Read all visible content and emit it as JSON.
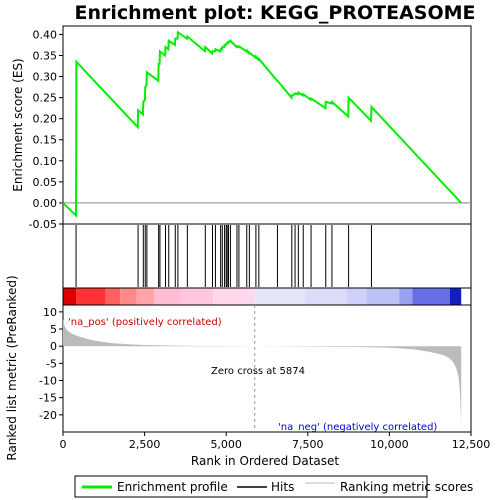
{
  "chart_data": {
    "type": "line",
    "title": "Enrichment plot: KEGG_PROTEASOME",
    "xlabel": "Rank in Ordered Dataset",
    "xlim": [
      0,
      12500
    ],
    "x_ticks": [
      "0",
      "2,500",
      "5,000",
      "7,500",
      "10,000",
      "12,500"
    ],
    "x_tick_values": [
      0,
      2500,
      5000,
      7500,
      10000,
      12500
    ],
    "panels": {
      "enrichment": {
        "ylabel": "Enrichment score (ES)",
        "ylim": [
          -0.05,
          0.42
        ],
        "y_ticks": [
          "-0.05",
          "0.00",
          "0.05",
          "0.10",
          "0.15",
          "0.20",
          "0.25",
          "0.30",
          "0.35",
          "0.40"
        ],
        "y_tick_values": [
          -0.05,
          0.0,
          0.05,
          0.1,
          0.15,
          0.2,
          0.25,
          0.3,
          0.35,
          0.4
        ],
        "color": "#00ee00",
        "series": [
          {
            "x": [
              0,
              400,
              410,
              2290,
              2300,
              2450,
              2460,
              2510,
              2520,
              2560,
              2570,
              2920,
              2930,
              2960,
              2970,
              3130,
              3140,
              3230,
              3240,
              3430,
              3440,
              3510,
              3520,
              3800,
              3810,
              4350,
              4360,
              4570,
              4580,
              4660,
              4670,
              4820,
              4830,
              4870,
              4880,
              4940,
              4950,
              4990,
              5000,
              5020,
              5030,
              5060,
              5070,
              5120,
              5130,
              5320,
              5330,
              5380,
              5390,
              5620,
              5630,
              5700,
              5710,
              5900,
              5910,
              5990,
              6000,
              6560,
              6570,
              7000,
              7010,
              7100,
              7110,
              7200,
              7210,
              7350,
              7360,
              7590,
              7600,
              8040,
              8050,
              8230,
              8240,
              8740,
              8750,
              9440,
              9450,
              12200
            ],
            "y": [
              0.0,
              -0.03,
              0.335,
              0.18,
              0.22,
              0.21,
              0.24,
              0.245,
              0.275,
              0.28,
              0.31,
              0.29,
              0.33,
              0.33,
              0.36,
              0.35,
              0.37,
              0.365,
              0.385,
              0.375,
              0.39,
              0.39,
              0.405,
              0.39,
              0.395,
              0.36,
              0.37,
              0.355,
              0.36,
              0.36,
              0.365,
              0.36,
              0.365,
              0.365,
              0.37,
              0.37,
              0.375,
              0.375,
              0.378,
              0.378,
              0.38,
              0.38,
              0.383,
              0.383,
              0.385,
              0.37,
              0.372,
              0.37,
              0.372,
              0.36,
              0.362,
              0.355,
              0.357,
              0.345,
              0.348,
              0.34,
              0.342,
              0.29,
              0.29,
              0.25,
              0.255,
              0.258,
              0.26,
              0.258,
              0.262,
              0.255,
              0.258,
              0.245,
              0.248,
              0.225,
              0.24,
              0.236,
              0.24,
              0.205,
              0.25,
              0.195,
              0.228,
              0.0
            ]
          }
        ]
      },
      "hits": {
        "positions": [
          400,
          2300,
          2460,
          2520,
          2570,
          2930,
          2970,
          3140,
          3240,
          3440,
          3520,
          3810,
          4360,
          4580,
          4670,
          4830,
          4880,
          4950,
          5000,
          5030,
          5070,
          5130,
          5330,
          5390,
          5630,
          5710,
          5910,
          6000,
          6570,
          7010,
          7110,
          7210,
          7360,
          7600,
          8050,
          8240,
          8750,
          9450
        ]
      },
      "heatmap": {
        "segments": [
          {
            "x0": 0,
            "x1": 400,
            "color": "#dd0000"
          },
          {
            "x0": 400,
            "x1": 1300,
            "color": "#ff3333"
          },
          {
            "x0": 1300,
            "x1": 1750,
            "color": "#ff6060"
          },
          {
            "x0": 1750,
            "x1": 2250,
            "color": "#ff8888"
          },
          {
            "x0": 2250,
            "x1": 2800,
            "color": "#ffa5a5"
          },
          {
            "x0": 2800,
            "x1": 3600,
            "color": "#ffbdd5"
          },
          {
            "x0": 3600,
            "x1": 4600,
            "color": "#ffc8e0"
          },
          {
            "x0": 4600,
            "x1": 5874,
            "color": "#ffd8ec"
          },
          {
            "x0": 5874,
            "x1": 7400,
            "color": "#e6e6fb"
          },
          {
            "x0": 7400,
            "x1": 8700,
            "color": "#dcdcfa"
          },
          {
            "x0": 8700,
            "x1": 9300,
            "color": "#cfd2f8"
          },
          {
            "x0": 9300,
            "x1": 10300,
            "color": "#bdc2f5"
          },
          {
            "x0": 10300,
            "x1": 10700,
            "color": "#9aa2ef"
          },
          {
            "x0": 10700,
            "x1": 11850,
            "color": "#6670e6"
          },
          {
            "x0": 11850,
            "x1": 12200,
            "color": "#1020c0"
          }
        ]
      },
      "metric": {
        "ylabel": "Ranked list metric (PreRanked)",
        "ylim": [
          -25,
          12
        ],
        "y_ticks": [
          "10",
          "5",
          "0",
          "-5",
          "-10",
          "-15",
          "-20"
        ],
        "y_tick_values": [
          10,
          5,
          0,
          -5,
          -10,
          -15,
          -20
        ],
        "fill_color": "#bbbbbb",
        "x": [
          0,
          50,
          150,
          300,
          500,
          800,
          1100,
          1500,
          2000,
          2500,
          3000,
          4000,
          5000,
          5874,
          7000,
          8000,
          9000,
          9800,
          10300,
          10800,
          11200,
          11500,
          11700,
          11850,
          11950,
          12050,
          12120,
          12160,
          12200
        ],
        "y": [
          7.8,
          5.8,
          4.4,
          3.5,
          2.8,
          2.0,
          1.4,
          0.9,
          0.55,
          0.35,
          0.22,
          0.1,
          0.04,
          0.0,
          -0.08,
          -0.15,
          -0.25,
          -0.4,
          -0.6,
          -1.0,
          -1.6,
          -2.2,
          -2.8,
          -3.6,
          -4.6,
          -6.5,
          -9.0,
          -13.0,
          -22.5
        ],
        "zero_cross": 5874,
        "pos_label": "'na_pos' (positively correlated)",
        "neg_label": "'na_neg' (negatively correlated)",
        "zero_cross_label": "Zero cross at 5874"
      }
    },
    "legend": {
      "placement": "bottom",
      "entries": [
        {
          "label": "Enrichment profile",
          "color": "#00ee00"
        },
        {
          "label": "Hits",
          "color": "#000000"
        },
        {
          "label": "Ranking metric scores",
          "color": "#bbbbbb"
        }
      ]
    }
  }
}
